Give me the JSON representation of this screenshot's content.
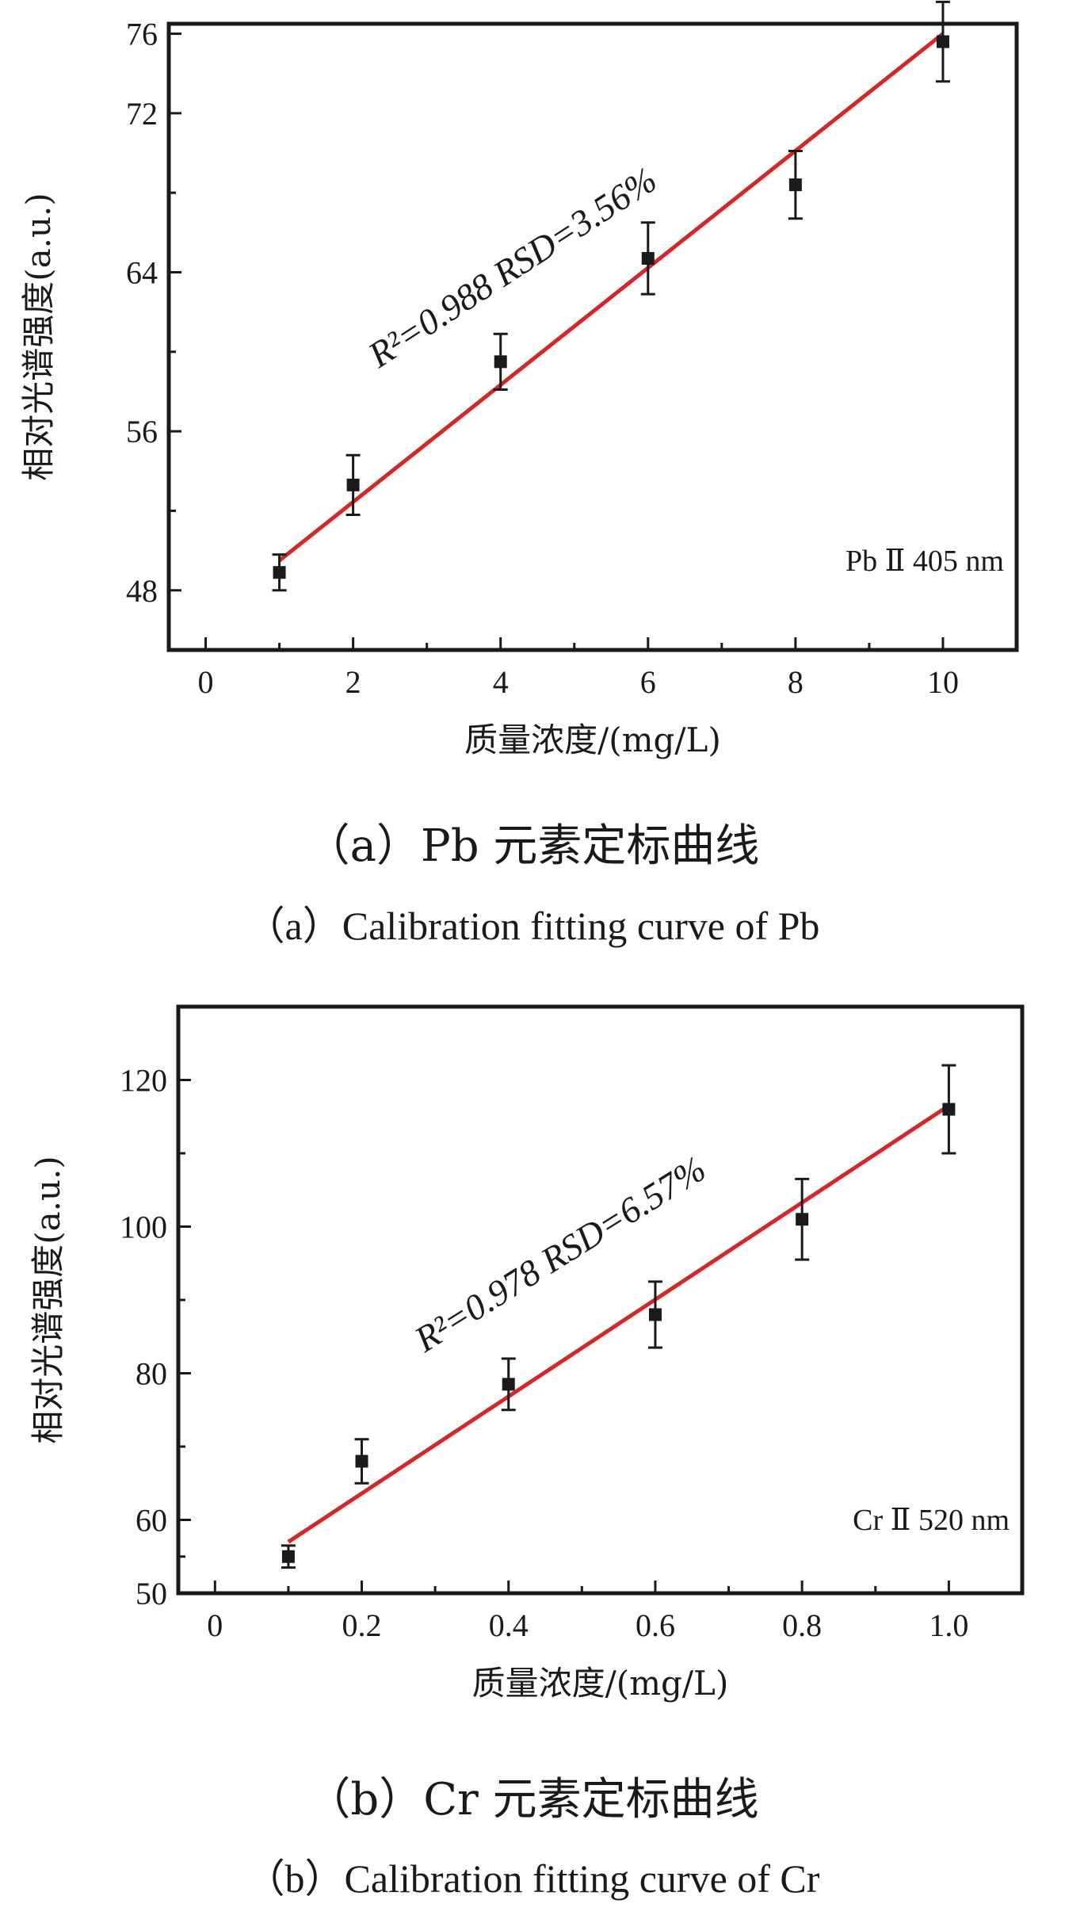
{
  "chart_data": [
    {
      "type": "scatter",
      "title": "",
      "xlabel": "质量浓度/(mg/L)",
      "ylabel": "相对光谱强度(a.u.)",
      "xlim": [
        -0.5,
        11
      ],
      "ylim": [
        45,
        76.5
      ],
      "xticks": [
        0,
        2,
        4,
        6,
        8,
        10
      ],
      "xtick_labels": [
        "0",
        "2",
        "4",
        "6",
        "8",
        "10"
      ],
      "yticks": [
        48,
        56,
        64,
        72,
        76
      ],
      "ytick_labels": [
        "48",
        "56",
        "64",
        "72",
        "76"
      ],
      "grid": false,
      "series": [
        {
          "name": "Pb II 405 nm",
          "x": [
            1,
            2,
            4,
            6,
            8,
            10
          ],
          "y": [
            48.9,
            53.3,
            59.5,
            64.7,
            68.4,
            75.6
          ],
          "yerr": [
            0.9,
            1.5,
            1.4,
            1.8,
            1.7,
            2.0
          ],
          "marker_color": "#1a1a1a"
        }
      ],
      "fit_line": {
        "x": [
          1,
          10
        ],
        "y": [
          49.5,
          76.0
        ],
        "color": "#d62728"
      },
      "annotations": {
        "equation": "R²=0.988   RSD=3.56%",
        "line_label": "Pb Ⅱ 405 nm"
      },
      "caption_cn": "（a）Pb 元素定标曲线",
      "caption_en": "（a）Calibration fitting curve of Pb"
    },
    {
      "type": "scatter",
      "title": "",
      "xlabel": "质量浓度/(mg/L)",
      "ylabel": "相对光谱强度(a.u.)",
      "xlim": [
        -0.05,
        1.1
      ],
      "ylim": [
        50,
        130
      ],
      "xticks": [
        0,
        0.2,
        0.4,
        0.6,
        0.8,
        1.0
      ],
      "xtick_labels": [
        "0",
        "0.2",
        "0.4",
        "0.6",
        "0.8",
        "1.0"
      ],
      "yticks": [
        50,
        60,
        80,
        100,
        120
      ],
      "ytick_labels": [
        "50",
        "60",
        "80",
        "100",
        "120"
      ],
      "grid": false,
      "series": [
        {
          "name": "Cr II 520 nm",
          "x": [
            0.1,
            0.2,
            0.4,
            0.6,
            0.8,
            1.0
          ],
          "y": [
            55,
            68,
            78.5,
            88,
            101,
            116
          ],
          "yerr": [
            1.5,
            3.0,
            3.5,
            4.5,
            5.5,
            6.0
          ],
          "marker_color": "#1a1a1a"
        }
      ],
      "fit_line": {
        "x": [
          0.1,
          1.0
        ],
        "y": [
          57,
          116.5
        ],
        "color": "#d62728"
      },
      "annotations": {
        "equation": "R²=0.978   RSD=6.57%",
        "line_label": "Cr Ⅱ 520 nm"
      },
      "caption_cn": "（b）Cr 元素定标曲线",
      "caption_en": "（b）Calibration fitting curve of Cr"
    }
  ]
}
